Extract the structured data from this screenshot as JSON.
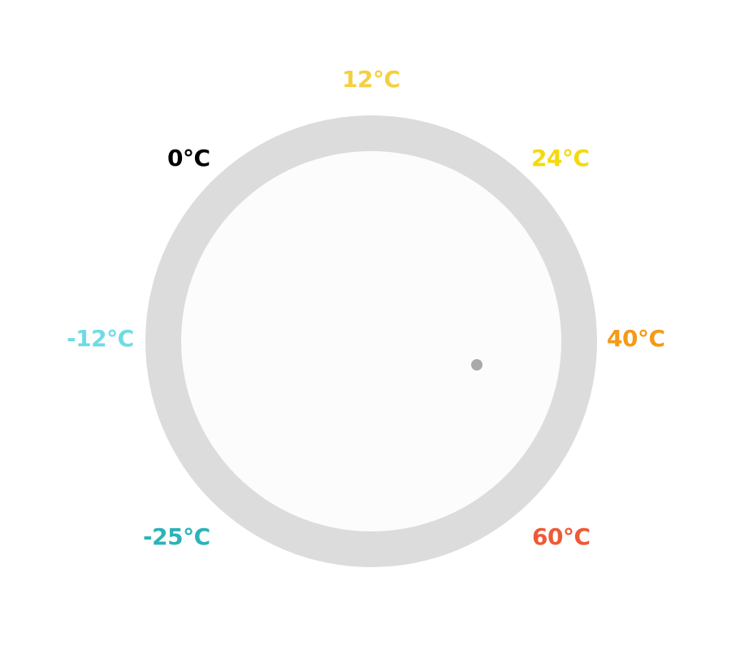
{
  "dial": {
    "labels": {
      "t12": {
        "text": "12°C",
        "color": "#f6cf3d"
      },
      "t0": {
        "text": "0°C",
        "color": "#000000"
      },
      "t24": {
        "text": "24°C",
        "color": "#f5d90e"
      },
      "tm12": {
        "text": "-12°C",
        "color": "#6fdbe6"
      },
      "t40": {
        "text": "40°C",
        "color": "#f59a16"
      },
      "tm25": {
        "text": "-25°C",
        "color": "#2bb3b8"
      },
      "t60": {
        "text": "60°C",
        "color": "#ef5a35"
      }
    },
    "ring_color": "#dcdcdc",
    "face_color": "#fcfcfc",
    "indicator_color": "#a9a9a9"
  }
}
